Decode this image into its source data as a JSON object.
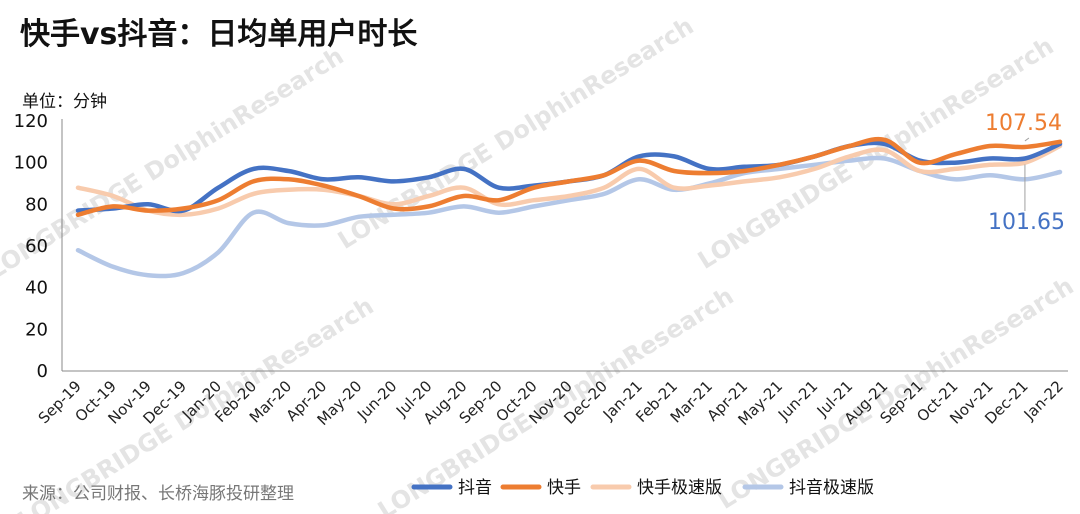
{
  "title": "快手vs抖音：日均单用户时长",
  "unit_label": "单位：分钟",
  "source": "来源：公司财报、长桥海豚投研整理",
  "watermark": "LONGBRIDGE DolphinResearch",
  "chart_data": {
    "type": "line",
    "categories": [
      "Sep-19",
      "Oct-19",
      "Nov-19",
      "Dec-19",
      "Jan-20",
      "Feb-20",
      "Mar-20",
      "Apr-20",
      "May-20",
      "Jun-20",
      "Jul-20",
      "Aug-20",
      "Sep-20",
      "Oct-20",
      "Nov-20",
      "Dec-20",
      "Jan-21",
      "Feb-21",
      "Mar-21",
      "Apr-21",
      "May-21",
      "Jun-21",
      "Jul-21",
      "Aug-21",
      "Sep-21",
      "Oct-21",
      "Nov-21",
      "Dec-21",
      "Jan-22"
    ],
    "ylim": [
      0,
      120
    ],
    "yticks": [
      0,
      20,
      40,
      60,
      80,
      100,
      120
    ],
    "legend_position": "bottom-right",
    "series": [
      {
        "name": "抖音",
        "color": "#4472C4",
        "values": [
          77,
          78,
          80,
          77,
          88,
          97,
          96,
          92,
          93,
          91,
          93,
          97,
          88,
          89,
          91,
          94,
          103,
          103,
          97,
          98,
          99,
          103,
          108,
          109,
          101,
          100,
          102,
          102,
          109
        ]
      },
      {
        "name": "快手",
        "color": "#ED7D31",
        "values": [
          75,
          79,
          77,
          78,
          82,
          91,
          92,
          89,
          84,
          78,
          79,
          84,
          82,
          88,
          91,
          94,
          101,
          96,
          95,
          96,
          99,
          103,
          108,
          111,
          100,
          104,
          108,
          107.54,
          110
        ]
      },
      {
        "name": "快手极速版",
        "color": "#F8CBAD",
        "values": [
          88,
          84,
          77,
          75,
          78,
          85,
          87,
          87,
          84,
          80,
          84,
          88,
          80,
          82,
          84,
          88,
          97,
          88,
          89,
          91,
          93,
          97,
          103,
          106,
          96,
          97,
          99,
          100,
          108
        ]
      },
      {
        "name": "抖音极速版",
        "color": "#B4C7E7",
        "values": [
          58,
          50,
          46,
          47,
          57,
          76,
          71,
          70,
          74,
          75,
          76,
          79,
          76,
          79,
          82,
          85,
          92,
          87,
          90,
          95,
          97,
          99,
          101,
          102,
          96,
          92,
          94,
          92,
          95.5
        ]
      }
    ],
    "data_labels": [
      {
        "series": "快手",
        "category": "Dec-21",
        "text": "107.54",
        "color": "#ED7D31"
      },
      {
        "series": "抖音",
        "category": "Dec-21",
        "text": "101.65",
        "color": "#4472C4"
      }
    ]
  }
}
